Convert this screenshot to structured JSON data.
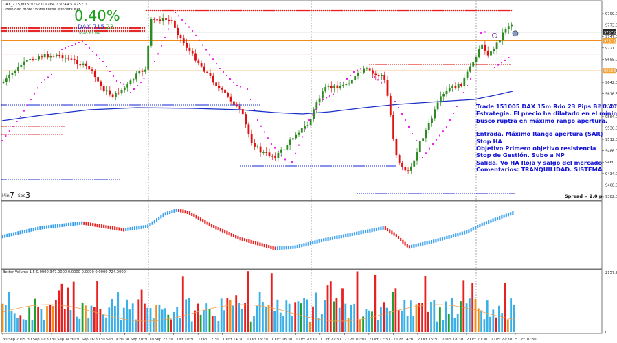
{
  "header": {
    "symbol_line": "DAX_Z15,M15  9757.0  9764.0  9744.5  9757.0",
    "download_line": "Download more: Www.Forex Winners.Net",
    "percent": "0.40%",
    "dax_label": "DAX 715",
    "dax_value": "23",
    "dax_sub": "Ma8 Ri MA",
    "min_label": "Min",
    "min_value": "7",
    "sec_label": "Sec",
    "sec_value": "3",
    "spread": "Spread = 2.0 p."
  },
  "commentary": {
    "title": "Trade 151005 DAX 15m Rdo 23 Pips Bº 0.40%",
    "strategy_1": "Estrategia. El precio ha dilatado en el mínimo y",
    "strategy_2": "busco ruptra en máximo rango apertura.",
    "entry": "Entrada. Máximo Rango apertura (SAR)",
    "stop": "Stop HA",
    "target": "Objetivo Primero objetivo resistencia",
    "management": "Stop de Gestión. Subo a NP",
    "exit": "Salida. Vo HA Roja y salgo del mercado",
    "comments": "Comentarios: TRANQUILIDAD. SISTEMA"
  },
  "volume_header": "Better Volume 1.5  0.0000  347.0000  0.0000  0.0000  0.0000  724.0000",
  "price_labels": [
    "9799.0",
    "9773.0",
    "9747.0",
    "9721.0",
    "9695.0",
    "9668.5",
    "9642.0",
    "9616.5",
    "9590.5",
    "9564.0",
    "9538.0",
    "9512.0",
    "9486.0",
    "9460.0",
    "9434.0",
    "9408.0",
    "9382.0"
  ],
  "volume_labels": [
    "2157.75",
    "0"
  ],
  "price_tags": [
    {
      "value": 9757.0,
      "text": "9757.0",
      "color": "#2a2a2a"
    },
    {
      "value": 9737.0,
      "text": "9737.0",
      "color": "#f5a030"
    },
    {
      "value": 9668.5,
      "text": "9668.5",
      "color": "#f5a030"
    }
  ],
  "time_labels": [
    "30 Sep 2015",
    "30 Sep 12:30",
    "30 Sep 14:30",
    "30 Sep 16:30",
    "30 Sep 18:30",
    "30 Sep 20:30",
    "30 Sep 22:30",
    "1 Oct 10:30",
    "1 Oct 12:30",
    "1 Oct 14:30",
    "1 Oct 16:30",
    "1 Oct 18:30",
    "1 Oct 20:30",
    "1 Oct 22:30",
    "2 Oct 10:30",
    "2 Oct 12:30",
    "2 Oct 14:30",
    "2 Oct 16:30",
    "2 Oct 18:30",
    "2 Oct 20:30",
    "2 Oct 22:30",
    "5 Oct 10:30"
  ],
  "colors": {
    "bull": "#2e8b22",
    "bear": "#e01010",
    "sar": "#ee22ee",
    "ma": "#1a2fc8",
    "resistance": "#f08c1a",
    "pivot_red": "#e82020",
    "pivot_blue": "#3344dd",
    "osc_up": "#3aa0ee",
    "osc_down": "#e82020",
    "vol_blue": "#3ab0e8",
    "vol_red": "#e82020",
    "vol_green": "#20a030",
    "vol_orange": "#f0901a",
    "vol_avg": "#f0a050",
    "text_blue": "#1515d6",
    "percent_green": "#20a020"
  },
  "chart_data": {
    "type": "candlestick",
    "title": "DAX_Z15,M15",
    "x_range": [
      "30 Sep 2015",
      "5 Oct 10:30"
    ],
    "ylim": [
      9382.0,
      9799.0
    ],
    "price_path": {
      "x_ticks": [
        "30 Sep 2015",
        "30 Sep 14:30",
        "30 Sep 18:30",
        "30 Sep 22:30",
        "1 Oct 10:30",
        "1 Oct 14:30",
        "1 Oct 18:30",
        "1 Oct 20:30",
        "1 Oct 22:30",
        "2 Oct 12:30",
        "2 Oct 14:30",
        "2 Oct 16:30",
        "2 Oct 20:30",
        "2 Oct 22:30",
        "5 Oct 10:30"
      ],
      "close": [
        9640,
        9700,
        9620,
        9690,
        9760,
        9700,
        9560,
        9480,
        9550,
        9660,
        9630,
        9420,
        9590,
        9660,
        9757
      ]
    },
    "horizontal_levels": {
      "top_resistance": 9781,
      "resistance_1": 9737.0,
      "resistance_2": 9668.5,
      "pink_level": 9707,
      "pivot_red_left": 9745,
      "pivot_blue_low": 9469,
      "pivot_blue_bottom": 9389
    },
    "moving_average": {
      "start": 9548,
      "end": 9618
    },
    "result": {
      "pips": 23,
      "percent": "0.40%"
    },
    "volume_ylim": [
      0,
      2157.75
    ],
    "volume_legend": {
      "last": 724.0,
      "prev": 347.0
    }
  }
}
